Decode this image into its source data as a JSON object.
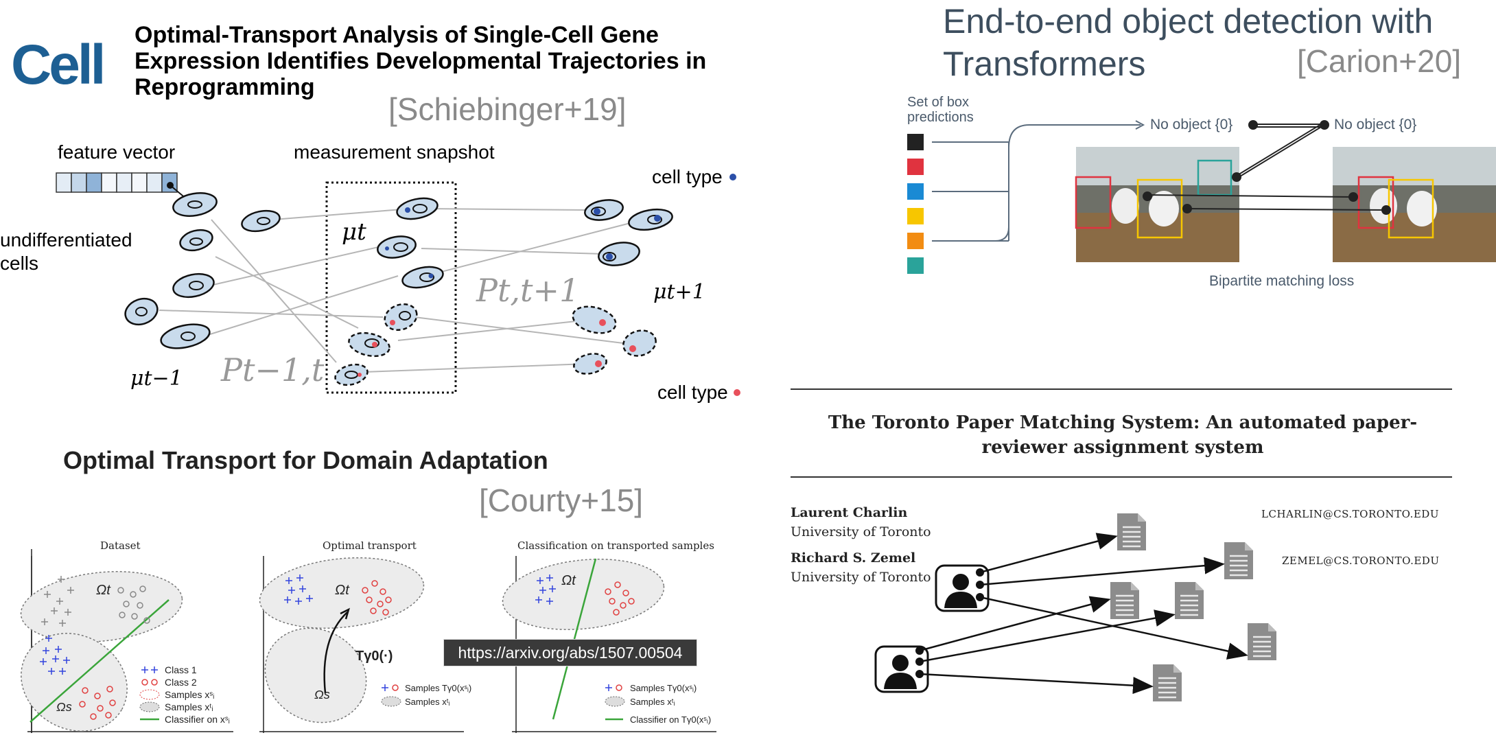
{
  "panels": {
    "schiebinger": {
      "logo_text": "Cell",
      "title": "Optimal-Transport Analysis of Single-Cell Gene Expression Identifies Developmental Trajectories in Reprogramming",
      "citation": "[Schiebinger+19]",
      "feature_vector": "feature vector",
      "measurement_snapshot": "measurement snapshot",
      "undiff_line1": "undifferentiated",
      "undiff_line2": "cells",
      "cell_type_blue": "cell type",
      "cell_type_red": "cell type",
      "mu_t": "μt",
      "mu_t1": "μt+1",
      "mu_tm1": "μt−1",
      "p_t": "Pt,t+1",
      "p_tm1": "Pt−1,t",
      "colors": {
        "blue_dot": "#2b4fa8",
        "red_dot": "#e8505b",
        "cell_fill": "#c9dbec"
      }
    },
    "detr": {
      "title_line1": "End-to-end object detection with",
      "title_line2": "Transformers",
      "citation": "[Carion+20]",
      "set_label_line1": "Set of box",
      "set_label_line2": "predictions",
      "no_object_left": "No object {0}",
      "no_object_right": "No object {0}",
      "matching_loss": "Bipartite matching loss",
      "box_colors": [
        "#222222",
        "#e0333f",
        "#1a8ad4",
        "#f7c600",
        "#f28c12",
        "#2aa39a"
      ]
    },
    "courty": {
      "title": "Optimal Transport for Domain Adaptation",
      "citation": "[Courty+15]",
      "sub_dataset": "Dataset",
      "sub_ot": "Optimal transport",
      "sub_classif": "Classification on transported samples",
      "omega_t": "Ωt",
      "omega_s": "Ωs",
      "T_label": "Tγ0(·)",
      "legend1": [
        "Class 1",
        "Class 2",
        "Samples xˢᵢ",
        "Samples xᵗᵢ",
        "Classifier on xˢᵢ"
      ],
      "legend2": [
        "Samples Tγ0(xˢᵢ)",
        "Samples xᵗᵢ"
      ],
      "legend3": [
        "Samples Tγ0(xˢᵢ)",
        "Samples xᵗᵢ",
        "Classifier on Tγ0(xˢᵢ)"
      ],
      "tooltip_url": "https://arxiv.org/abs/1507.00504"
    },
    "tpms": {
      "title": "The Toronto Paper Matching System: An automated paper-reviewer assignment system",
      "author1": "Laurent Charlin",
      "affil1": "University of Toronto",
      "email1": "LCHARLIN@CS.TORONTO.EDU",
      "author2": "Richard S. Zemel",
      "affil2": "University of Toronto",
      "email2": "ZEMEL@CS.TORONTO.EDU"
    }
  }
}
